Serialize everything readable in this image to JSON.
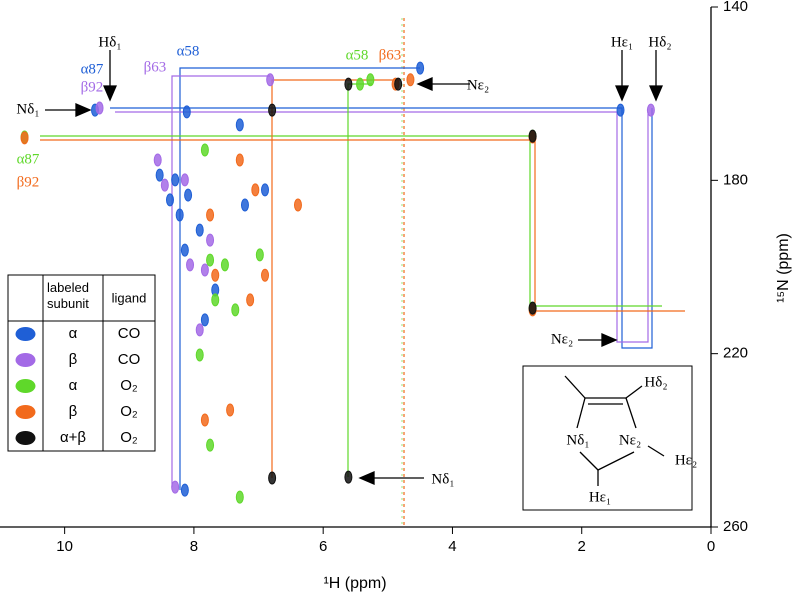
{
  "chart_data": {
    "type": "scatter",
    "x_label": "¹H  (ppm)",
    "y_label": "¹⁵N  (ppm)",
    "xlim": [
      11,
      0
    ],
    "xticks": [
      10,
      8,
      6,
      4,
      2,
      0
    ],
    "ylim": [
      140,
      260
    ],
    "yticks": [
      140,
      180,
      220,
      260
    ],
    "legend_headers": [
      "labeled subunit",
      "ligand"
    ],
    "legend_position": "lower left",
    "series": [
      {
        "subunit": "α",
        "ligand": "CO",
        "color": "#1f5fd6",
        "x": [
          8.53,
          8.29,
          8.37,
          8.09,
          8.22,
          7.91,
          8.14,
          7.67,
          7.83,
          7.29,
          7.21,
          6.9,
          9.53,
          1.4,
          8.11,
          4.5,
          8.14
        ],
        "y": [
          178.8,
          179.9,
          184.5,
          183.4,
          188.0,
          191.5,
          196.1,
          205.3,
          212.2,
          167.2,
          185.7,
          182.2,
          163.8,
          163.8,
          164.2,
          154.1,
          251.5
        ]
      },
      {
        "subunit": "β",
        "ligand": "CO",
        "color": "#a36ae6",
        "x": [
          8.56,
          8.45,
          8.14,
          8.06,
          7.83,
          7.91,
          7.75,
          9.46,
          0.93,
          6.82,
          8.29
        ],
        "y": [
          175.3,
          181.1,
          179.9,
          199.5,
          200.7,
          214.5,
          193.8,
          163.3,
          163.8,
          156.8,
          250.8
        ]
      },
      {
        "subunit": "α",
        "ligand": "O₂",
        "color": "#5fd82a",
        "x": [
          7.83,
          7.75,
          7.67,
          7.52,
          7.36,
          7.75,
          6.98,
          7.91,
          7.29,
          10.62,
          2.76,
          2.76,
          5.43,
          5.27
        ],
        "y": [
          173.0,
          198.4,
          207.6,
          199.5,
          209.9,
          241.1,
          197.2,
          220.3,
          253.1,
          170.0,
          169.8,
          209.5,
          157.8,
          156.8
        ]
      },
      {
        "subunit": "β",
        "ligand": "O₂",
        "color": "#f26a1c",
        "x": [
          7.75,
          7.67,
          7.29,
          7.13,
          7.83,
          7.44,
          6.9,
          6.39,
          7.05,
          10.62,
          2.76,
          2.76,
          4.88,
          4.65
        ],
        "y": [
          188.0,
          201.9,
          175.3,
          207.6,
          235.3,
          233.0,
          201.9,
          185.7,
          182.2,
          170.2,
          170.0,
          209.9,
          157.8,
          156.8
        ]
      },
      {
        "subunit": "α+β",
        "ligand": "O₂",
        "color": "#111111",
        "x": [
          5.61,
          4.84,
          6.79,
          2.76,
          5.61,
          6.79,
          2.76
        ],
        "y": [
          157.8,
          157.8,
          163.8,
          169.8,
          248.5,
          248.7,
          209.5
        ]
      }
    ],
    "annotations": [
      {
        "text": "Hδ₁",
        "color": "#000000"
      },
      {
        "text": "α87",
        "color": "#1f5fd6"
      },
      {
        "text": "β92",
        "color": "#a36ae6"
      },
      {
        "text": "β63",
        "color": "#a36ae6"
      },
      {
        "text": "α58",
        "color": "#1f5fd6"
      },
      {
        "text": "α58",
        "color": "#5fd82a"
      },
      {
        "text": "β63",
        "color": "#f26a1c"
      },
      {
        "text": "Nε₂",
        "color": "#000000"
      },
      {
        "text": "Hε₁",
        "color": "#000000"
      },
      {
        "text": "Hδ₂",
        "color": "#000000"
      },
      {
        "text": "Nδ₁",
        "color": "#000000"
      },
      {
        "text": "α87",
        "color": "#5fd82a"
      },
      {
        "text": "β92",
        "color": "#f26a1c"
      },
      {
        "text": "Nε₂",
        "color": "#000000"
      },
      {
        "text": "Nδ₁",
        "color": "#000000"
      }
    ],
    "inset_labels": [
      "Hδ₂",
      "Nδ₁",
      "Nε₂",
      "Hε₂",
      "Hε₁"
    ]
  }
}
